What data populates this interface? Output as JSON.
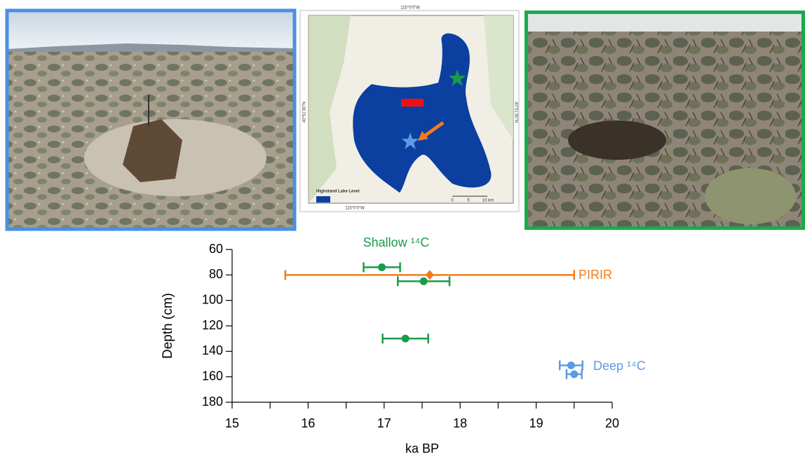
{
  "map": {
    "top_label": "115°0'0\"W",
    "bottom_label": "115°0'0\"W",
    "left_label": "40°51'30\"N",
    "right_label": "40°51'30\"N",
    "legend": "Highstand Lake Level",
    "scale_labels": [
      "0",
      "5",
      "10 km"
    ]
  },
  "chart_data": {
    "type": "scatter",
    "xlabel": "ka BP",
    "ylabel": "Depth (cm)",
    "xlim": [
      15,
      20
    ],
    "xticks": [
      15,
      16,
      17,
      18,
      19,
      20
    ],
    "xminorticks": [
      15.5,
      16.5,
      17.5,
      18.5,
      19.5
    ],
    "ylim": [
      60,
      180
    ],
    "yticks": [
      60,
      80,
      100,
      120,
      140,
      160,
      180
    ],
    "y_inverted": true,
    "series": [
      {
        "name": "Shallow ¹⁴C",
        "color": "#1b9a4a",
        "marker": "circle",
        "x": [
          16.97,
          17.52,
          17.28
        ],
        "values": [
          74,
          85,
          130
        ],
        "xerr": [
          0.24,
          0.34,
          0.3
        ]
      },
      {
        "name": "PIRIR",
        "color": "#f07c1c",
        "marker": "diamond",
        "x": [
          17.6
        ],
        "values": [
          80
        ],
        "xerr": [
          1.9
        ]
      },
      {
        "name": "Deep ¹⁴C",
        "color": "#5b9be6",
        "marker": "circle",
        "x": [
          19.46,
          19.5
        ],
        "values": [
          151,
          158
        ],
        "xerr": [
          0.15,
          0.1
        ]
      }
    ]
  }
}
